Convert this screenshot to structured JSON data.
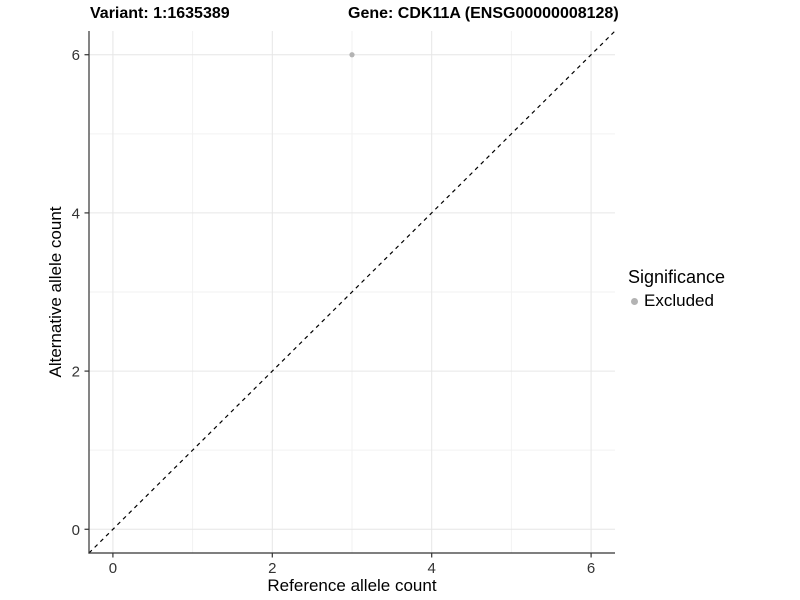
{
  "header": {
    "variant_title": "Variant: 1:1635389",
    "gene_title": "Gene: CDK11A (ENSG00000008128)"
  },
  "legend": {
    "title": "Significance",
    "items": [
      {
        "label": "Excluded",
        "color": "#b3b3b3"
      }
    ]
  },
  "chart_data": {
    "type": "scatter",
    "title": "Variant: 1:1635389    Gene: CDK11A (ENSG00000008128)",
    "xlabel": "Reference allele count",
    "ylabel": "Alternative allele count",
    "xlim": [
      -0.3,
      6.3
    ],
    "ylim": [
      -0.3,
      6.3
    ],
    "xticks": [
      0,
      2,
      4,
      6
    ],
    "yticks": [
      0,
      2,
      4,
      6
    ],
    "x_minor_ticks": [
      1,
      3,
      5
    ],
    "y_minor_ticks": [
      1,
      3,
      5
    ],
    "grid": "major and minor gridlines on white panel",
    "legend_position": "right",
    "series": [
      {
        "name": "Excluded",
        "color": "#b3b3b3",
        "points": [
          [
            3,
            6
          ]
        ]
      }
    ],
    "reference_line": {
      "type": "identity",
      "slope": 1,
      "intercept": 0,
      "style": "dashed",
      "color": "#000000"
    },
    "colors": {
      "grid_major": "#e6e6e6",
      "grid_minor": "#f2f2f2",
      "axis_line": "#333333",
      "tick_text": "#333333",
      "point": "#b3b3b3"
    }
  }
}
